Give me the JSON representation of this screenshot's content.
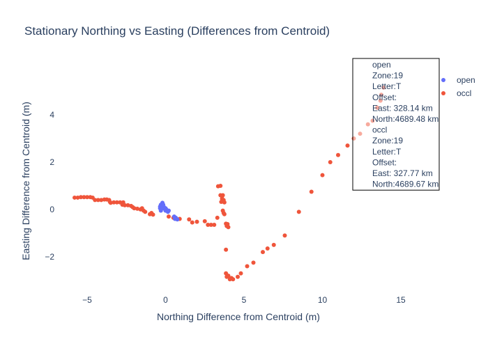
{
  "chart_data": {
    "type": "scatter",
    "title": "Stationary Northing vs Easting (Differences from Centroid)",
    "xlabel": "Northing Difference from Centroid (m)",
    "ylabel": "Easting Difference from Centroid (m)",
    "xlim": [
      -7.0,
      17.0
    ],
    "ylim": [
      -3.65,
      6.5
    ],
    "xticks": [
      -5,
      0,
      5,
      10,
      15
    ],
    "yticks": [
      -2,
      0,
      2,
      4
    ],
    "grid": false,
    "legend_position": "right",
    "series": [
      {
        "name": "open",
        "color": "#636efa",
        "points": [
          [
            -0.35,
            0.05
          ],
          [
            -0.35,
            0.12
          ],
          [
            -0.3,
            0.2
          ],
          [
            -0.25,
            0.15
          ],
          [
            -0.2,
            0.28
          ],
          [
            -0.15,
            0.2
          ],
          [
            -0.1,
            0.1
          ],
          [
            -0.05,
            0.02
          ],
          [
            0.0,
            -0.05
          ],
          [
            0.05,
            0.0
          ],
          [
            0.1,
            -0.05
          ],
          [
            0.15,
            -0.1
          ],
          [
            0.2,
            -0.05
          ],
          [
            -0.3,
            -0.05
          ],
          [
            -0.2,
            0.05
          ],
          [
            0.0,
            0.05
          ],
          [
            0.55,
            -0.3
          ],
          [
            0.6,
            -0.4
          ],
          [
            0.65,
            -0.35
          ],
          [
            0.7,
            -0.4
          ],
          [
            0.75,
            -0.42
          ]
        ]
      },
      {
        "name": "occl",
        "color": "#ef553b",
        "points": [
          [
            -5.8,
            0.5
          ],
          [
            -5.6,
            0.5
          ],
          [
            -5.4,
            0.52
          ],
          [
            -5.2,
            0.52
          ],
          [
            -5.0,
            0.52
          ],
          [
            -4.8,
            0.52
          ],
          [
            -4.65,
            0.5
          ],
          [
            -4.5,
            0.4
          ],
          [
            -4.3,
            0.4
          ],
          [
            -4.1,
            0.4
          ],
          [
            -3.9,
            0.42
          ],
          [
            -3.75,
            0.42
          ],
          [
            -3.6,
            0.4
          ],
          [
            -3.55,
            0.32
          ],
          [
            -3.5,
            0.28
          ],
          [
            -3.3,
            0.3
          ],
          [
            -3.1,
            0.3
          ],
          [
            -2.9,
            0.3
          ],
          [
            -2.7,
            0.3
          ],
          [
            -2.75,
            0.2
          ],
          [
            -2.6,
            0.18
          ],
          [
            -2.4,
            0.18
          ],
          [
            -2.2,
            0.15
          ],
          [
            -2.1,
            0.1
          ],
          [
            -2.0,
            0.05
          ],
          [
            -1.8,
            0.03
          ],
          [
            -1.6,
            0.0
          ],
          [
            -1.5,
            0.05
          ],
          [
            -1.4,
            -0.05
          ],
          [
            -1.3,
            -0.1
          ],
          [
            -1.0,
            -0.2
          ],
          [
            -0.9,
            -0.15
          ],
          [
            -0.8,
            -0.22
          ],
          [
            0.2,
            -0.3
          ],
          [
            0.5,
            -0.35
          ],
          [
            0.9,
            -0.4
          ],
          [
            1.5,
            -0.42
          ],
          [
            1.7,
            -0.55
          ],
          [
            2.0,
            -0.52
          ],
          [
            2.5,
            -0.5
          ],
          [
            2.7,
            -0.65
          ],
          [
            2.9,
            -0.65
          ],
          [
            3.1,
            -0.65
          ],
          [
            3.3,
            -0.35
          ],
          [
            3.35,
            0.98
          ],
          [
            3.5,
            1.0
          ],
          [
            3.5,
            0.6
          ],
          [
            3.6,
            0.55
          ],
          [
            3.65,
            0.6
          ],
          [
            3.6,
            0.45
          ],
          [
            3.55,
            0.32
          ],
          [
            3.65,
            -0.05
          ],
          [
            3.7,
            -0.15
          ],
          [
            3.75,
            -0.2
          ],
          [
            3.7,
            0.4
          ],
          [
            3.75,
            0.3
          ],
          [
            3.85,
            -0.6
          ],
          [
            3.9,
            -0.7
          ],
          [
            3.95,
            -0.62
          ],
          [
            4.0,
            -0.75
          ],
          [
            3.85,
            -1.7
          ],
          [
            3.85,
            -2.7
          ],
          [
            3.9,
            -2.85
          ],
          [
            4.0,
            -2.8
          ],
          [
            4.1,
            -2.95
          ],
          [
            4.2,
            -2.9
          ],
          [
            4.3,
            -2.95
          ],
          [
            4.6,
            -2.85
          ],
          [
            4.8,
            -2.7
          ],
          [
            5.2,
            -2.4
          ],
          [
            5.6,
            -2.25
          ],
          [
            6.2,
            -1.8
          ],
          [
            6.5,
            -1.65
          ],
          [
            6.9,
            -1.5
          ],
          [
            7.6,
            -1.1
          ],
          [
            8.5,
            -0.1
          ],
          [
            9.3,
            0.75
          ],
          [
            10.0,
            1.45
          ],
          [
            10.5,
            2.0
          ],
          [
            11.0,
            2.3
          ],
          [
            11.6,
            2.7
          ],
          [
            12.0,
            3.0
          ],
          [
            12.4,
            3.2
          ],
          [
            12.9,
            3.6
          ],
          [
            13.2,
            3.75
          ],
          [
            13.5,
            4.3
          ],
          [
            13.7,
            4.6
          ],
          [
            13.75,
            4.85
          ],
          [
            13.9,
            5.15
          ]
        ]
      }
    ],
    "annotations": [
      {
        "lines": [
          "open",
          "Zone:19",
          "Letter:T",
          "Offset:",
          "East: 328.14 km",
          "North:4689.48 km",
          "occl",
          "Zone:19",
          "Letter:T",
          "Offset:",
          "East: 327.77 km",
          "North:4689.67 km"
        ]
      }
    ]
  }
}
